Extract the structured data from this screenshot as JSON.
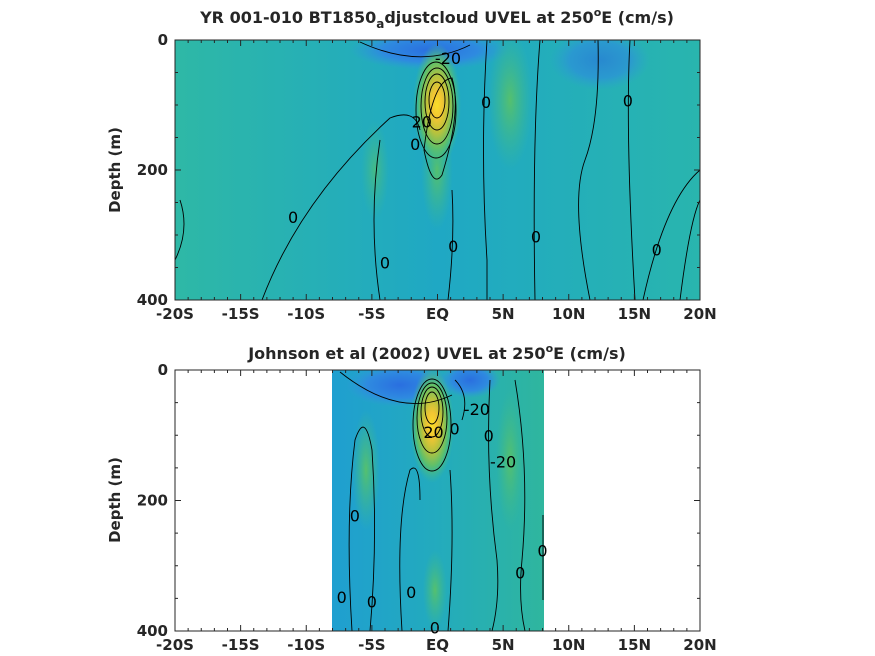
{
  "chart_data": [
    {
      "type": "heatmap",
      "title_prefix": "YR 001-010 BT1850",
      "title_sub": "a",
      "title_main": "djustcloud UVEL at 250",
      "title_sup": "o",
      "title_suffix": "E (cm/s)",
      "ylabel": "Depth (m)",
      "xlim": [
        -20,
        20
      ],
      "ylim": [
        0,
        400
      ],
      "y_reversed": true,
      "x_ticks": [
        -20,
        -15,
        -10,
        -5,
        0,
        5,
        10,
        15,
        20
      ],
      "x_tick_labels": [
        "-20S",
        "-15S",
        "-10S",
        "-5S",
        "EQ",
        "5N",
        "10N",
        "15N",
        "20N"
      ],
      "y_ticks": [
        0,
        200,
        400
      ],
      "y_tick_labels": [
        "0",
        "200",
        "400"
      ],
      "data_extent_x": [
        -20,
        20
      ],
      "core": {
        "lat": 0,
        "depth": 90,
        "max": 100
      },
      "contour_labels": [
        {
          "text": "-20",
          "lat": 0.8,
          "depth": 28
        },
        {
          "text": "0",
          "lat": 3.7,
          "depth": 95
        },
        {
          "text": "0",
          "lat": 14.5,
          "depth": 93
        },
        {
          "text": "20",
          "lat": -1.2,
          "depth": 125
        },
        {
          "text": "0",
          "lat": -1.7,
          "depth": 160
        },
        {
          "text": "0",
          "lat": -11,
          "depth": 272
        },
        {
          "text": "0",
          "lat": 1.2,
          "depth": 317
        },
        {
          "text": "0",
          "lat": 7.5,
          "depth": 302
        },
        {
          "text": "0",
          "lat": 16.7,
          "depth": 322
        },
        {
          "text": "0",
          "lat": -4,
          "depth": 342
        }
      ]
    },
    {
      "type": "heatmap",
      "title_prefix": "Johnson et al (2002) UVEL at 250",
      "title_sub": "",
      "title_main": "",
      "title_sup": "o",
      "title_suffix": "E (cm/s)",
      "ylabel": "Depth (m)",
      "xlim": [
        -20,
        20
      ],
      "ylim": [
        0,
        400
      ],
      "y_reversed": true,
      "x_ticks": [
        -20,
        -15,
        -10,
        -5,
        0,
        5,
        10,
        15,
        20
      ],
      "x_tick_labels": [
        "-20S",
        "-15S",
        "-10S",
        "-5S",
        "EQ",
        "5N",
        "10N",
        "15N",
        "20N"
      ],
      "y_ticks": [
        0,
        200,
        400
      ],
      "y_tick_labels": [
        "0",
        "200",
        "400"
      ],
      "data_extent_x": [
        -8,
        8.2
      ],
      "core": {
        "lat": -0.3,
        "depth": 70,
        "max": 100
      },
      "contour_labels": [
        {
          "text": "-20",
          "lat": 3,
          "depth": 60
        },
        {
          "text": "20",
          "lat": -0.3,
          "depth": 95
        },
        {
          "text": "0",
          "lat": 1.3,
          "depth": 90
        },
        {
          "text": "0",
          "lat": 3.9,
          "depth": 100
        },
        {
          "text": "-20",
          "lat": 5,
          "depth": 140
        },
        {
          "text": "0",
          "lat": -6.3,
          "depth": 223
        },
        {
          "text": "0",
          "lat": 8,
          "depth": 277
        },
        {
          "text": "0",
          "lat": 6.3,
          "depth": 310
        },
        {
          "text": "0",
          "lat": -7.3,
          "depth": 348
        },
        {
          "text": "0",
          "lat": -5,
          "depth": 355
        },
        {
          "text": "0",
          "lat": -2,
          "depth": 340
        },
        {
          "text": "0",
          "lat": -0.2,
          "depth": 395
        }
      ]
    }
  ]
}
